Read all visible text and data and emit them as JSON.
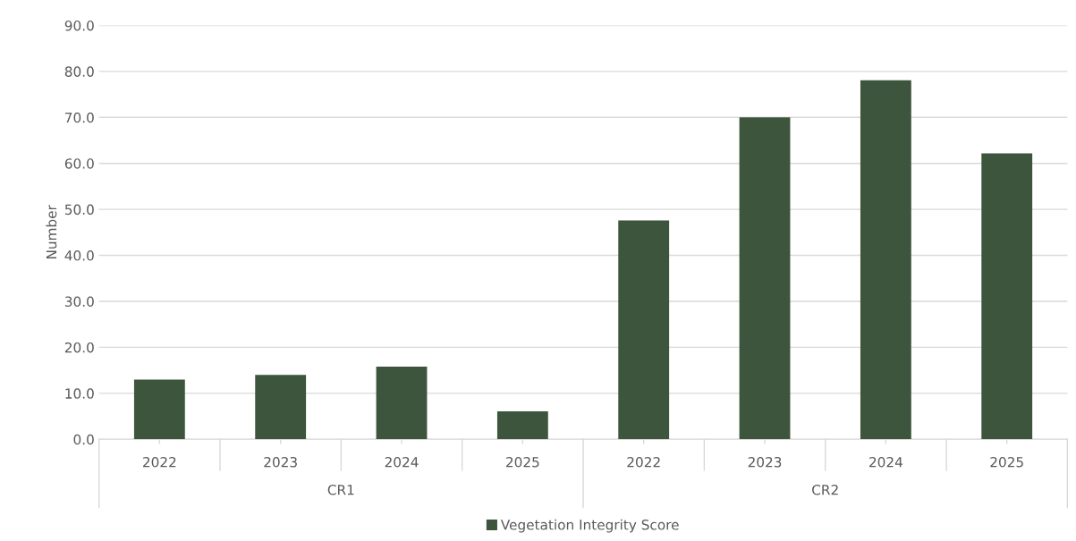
{
  "chart_data": {
    "type": "bar",
    "ylabel": "Number",
    "categories": [
      "2022",
      "2023",
      "2024",
      "2025",
      "2022",
      "2023",
      "2024",
      "2025"
    ],
    "annotations": [
      "CR1",
      "CR2"
    ],
    "series": [
      {
        "name": "Vegetation Integrity Score",
        "color": "#3d553c",
        "values": [
          13.0,
          14.0,
          15.8,
          6.1,
          47.6,
          70.0,
          78.1,
          62.2
        ]
      }
    ],
    "ylim": [
      0,
      90
    ],
    "yticks": [
      {
        "value": 0,
        "label": "0.0"
      },
      {
        "value": 10,
        "label": "10.0"
      },
      {
        "value": 20,
        "label": "20.0"
      },
      {
        "value": 30,
        "label": "30.0"
      },
      {
        "value": 40,
        "label": "40.0"
      },
      {
        "value": 50,
        "label": "50.0"
      },
      {
        "value": 60,
        "label": "60.0"
      },
      {
        "value": 70,
        "label": "70.0"
      },
      {
        "value": 80,
        "label": "80.0"
      },
      {
        "value": 90,
        "label": "90.0"
      }
    ],
    "grid": "y",
    "legend": "bottom"
  }
}
